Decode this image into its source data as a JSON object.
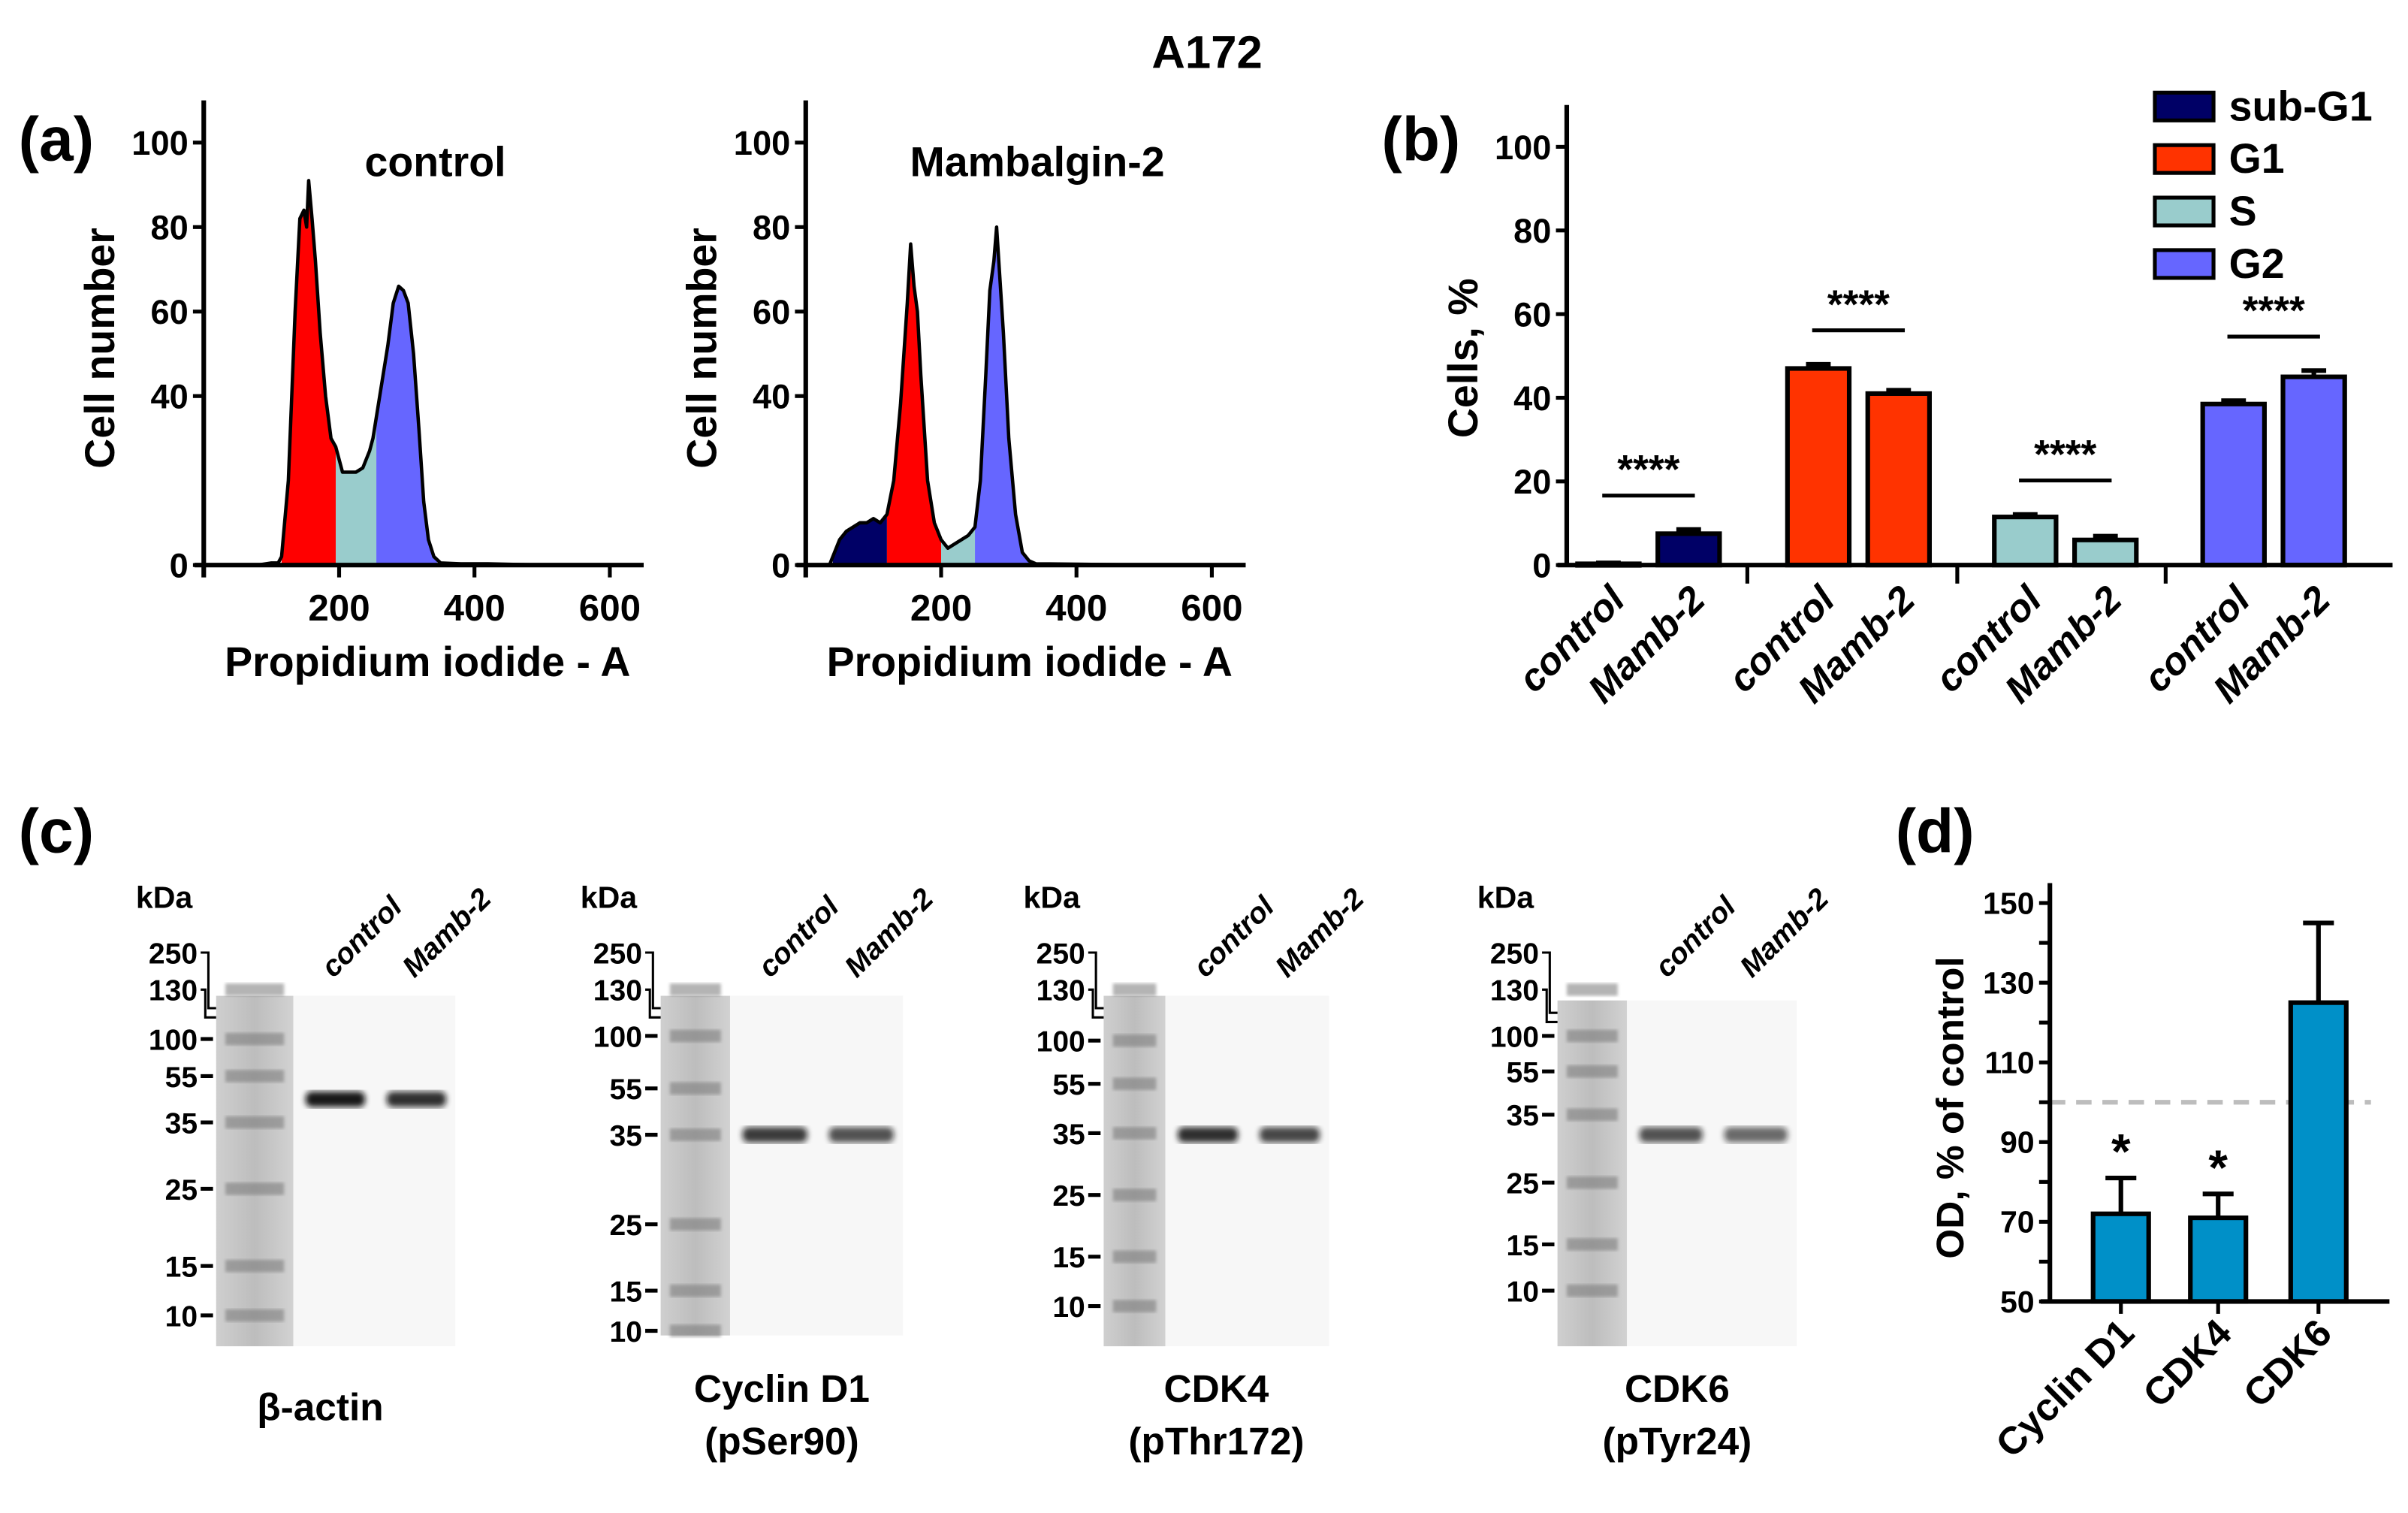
{
  "figure_title": "A172",
  "panel_labels": {
    "a": "(a)",
    "b": "(b)",
    "c": "(c)",
    "d": "(d)"
  },
  "colors": {
    "subG1": "#000066",
    "G1_hist": "#ff0000",
    "G1_bar": "#ff3300",
    "S": "#99cccc",
    "G2": "#6666ff",
    "panel_d_bar": "#0090c8",
    "reference_line": "#bdbdbd"
  },
  "chart_data": [
    {
      "id": "a-control",
      "type": "area",
      "title": "control",
      "xlabel": "Propidium iodide - A",
      "ylabel": "Cell number",
      "xlim": [
        0,
        650
      ],
      "ylim": [
        0,
        110
      ],
      "xticks": [
        200,
        400,
        600
      ],
      "yticks": [
        0,
        40,
        60,
        80,
        100
      ],
      "gates": {
        "subG1": [
          0,
          0
        ],
        "G1": [
          115,
          195
        ],
        "S": [
          195,
          255
        ],
        "G2": [
          255,
          345
        ]
      },
      "x": [
        0,
        80,
        100,
        110,
        115,
        125,
        135,
        142,
        148,
        152,
        155,
        160,
        165,
        172,
        180,
        188,
        195,
        205,
        215,
        225,
        235,
        245,
        250,
        258,
        265,
        272,
        280,
        288,
        295,
        302,
        310,
        318,
        325,
        332,
        340,
        350,
        380,
        420,
        500,
        600
      ],
      "y": [
        0,
        0,
        0.5,
        0.5,
        2,
        20,
        60,
        82,
        84,
        80,
        91,
        82,
        72,
        55,
        40,
        30,
        28,
        22,
        22,
        22,
        23,
        27,
        30,
        38,
        45,
        52,
        62,
        66,
        65,
        62,
        50,
        32,
        15,
        6,
        2,
        0.5,
        0.3,
        0.3,
        0,
        0
      ]
    },
    {
      "id": "a-mambalgin",
      "type": "area",
      "title": "Mambalgin-2",
      "xlabel": "Propidium iodide - A",
      "ylabel": "Cell number",
      "xlim": [
        0,
        650
      ],
      "ylim": [
        0,
        110
      ],
      "xticks": [
        200,
        400,
        600
      ],
      "yticks": [
        0,
        40,
        60,
        80,
        100
      ],
      "gates": {
        "subG1": [
          40,
          120
        ],
        "G1": [
          120,
          200
        ],
        "S": [
          200,
          250
        ],
        "G2": [
          250,
          330
        ]
      },
      "x": [
        0,
        35,
        40,
        50,
        60,
        70,
        80,
        90,
        100,
        110,
        120,
        130,
        140,
        150,
        155,
        160,
        165,
        170,
        180,
        190,
        200,
        210,
        220,
        230,
        240,
        250,
        258,
        266,
        272,
        278,
        282,
        286,
        292,
        300,
        310,
        320,
        330,
        340,
        400,
        500,
        600
      ],
      "y": [
        0,
        0,
        2,
        6,
        8,
        9,
        10,
        10,
        11,
        10,
        12,
        20,
        38,
        62,
        76,
        66,
        60,
        45,
        20,
        10,
        6,
        4,
        5,
        6,
        7,
        9,
        20,
        45,
        65,
        72,
        80,
        70,
        55,
        30,
        12,
        3,
        1,
        0.3,
        0.2,
        0,
        0
      ]
    },
    {
      "id": "b",
      "type": "bar",
      "ylabel": "Cells, %",
      "ylim": [
        0,
        110
      ],
      "yticks": [
        0,
        20,
        40,
        60,
        80,
        100
      ],
      "groups": [
        "sub-G1",
        "G1",
        "S",
        "G2"
      ],
      "categories": [
        "control",
        "Mamb-2",
        "control",
        "Mamb-2",
        "control",
        "Mamb-2",
        "control",
        "Mamb-2"
      ],
      "series": [
        {
          "name": "sub-G1",
          "values": [
            0.3,
            7.5
          ],
          "errors": [
            0.2,
            1.0
          ]
        },
        {
          "name": "G1",
          "values": [
            47,
            41
          ],
          "errors": [
            1.0,
            0.8
          ]
        },
        {
          "name": "S",
          "values": [
            11.5,
            6
          ],
          "errors": [
            0.6,
            0.9
          ]
        },
        {
          "name": "G2",
          "values": [
            38.5,
            45
          ],
          "errors": [
            0.8,
            1.5
          ]
        }
      ],
      "significance": [
        "****",
        "****",
        "****",
        "****"
      ],
      "legend": [
        "sub-G1",
        "G1",
        "S",
        "G2"
      ],
      "legend_position": "top-right"
    },
    {
      "id": "d",
      "type": "bar",
      "ylabel": "OD, % of control",
      "ylim": [
        50,
        155
      ],
      "yticks": [
        50,
        70,
        90,
        110,
        130,
        150
      ],
      "categories": [
        "Cyclin D1",
        "CDK4",
        "CDK6"
      ],
      "values": [
        72,
        71,
        125
      ],
      "errors": [
        9,
        6,
        20
      ],
      "significance": [
        "*",
        "*",
        ""
      ],
      "reference_line": 100
    }
  ],
  "blots": [
    {
      "label": "β-actin",
      "sublabel": "",
      "kda_header": "kDa",
      "markers": [
        "250",
        "130",
        "100",
        "55",
        "35",
        "25",
        "15",
        "10"
      ],
      "lanes": [
        "control",
        "Mamb-2"
      ]
    },
    {
      "label": "Cyclin D1",
      "sublabel": "(pSer90)",
      "kda_header": "kDa",
      "markers": [
        "250",
        "130",
        "100",
        "55",
        "35",
        "25",
        "15",
        "10"
      ],
      "lanes": [
        "control",
        "Mamb-2"
      ]
    },
    {
      "label": "CDK4",
      "sublabel": "(pThr172)",
      "kda_header": "kDa",
      "markers": [
        "250",
        "130",
        "100",
        "55",
        "35",
        "25",
        "15",
        "10"
      ],
      "lanes": [
        "control",
        "Mamb-2"
      ]
    },
    {
      "label": "CDK6",
      "sublabel": "(pTyr24)",
      "kda_header": "kDa",
      "markers": [
        "250",
        "130",
        "100",
        "55",
        "35",
        "25",
        "15",
        "10"
      ],
      "lanes": [
        "control",
        "Mamb-2"
      ]
    }
  ]
}
